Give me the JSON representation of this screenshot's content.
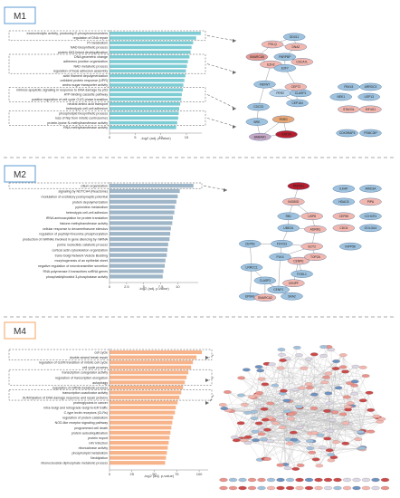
{
  "panels": [
    {
      "label": "M1",
      "accent": "#5b9bd5",
      "bar_color": "#7dccd4",
      "chart_data": {
        "type": "bar",
        "orientation": "horizontal",
        "xlabel": "-log2 (adj. p-value)",
        "xlim": [
          0,
          18
        ],
        "xticks": [
          0,
          5,
          10,
          15
        ],
        "categories": [
          "exonucleolytic activity, producing 5'-phosphomonoesters",
          "regulation of DNA repair",
          "PI metabolism",
          "NAD biosynthetic process",
          "protein K63-linked deubiquitination",
          "DNA geometric change",
          "adherens junction organization",
          "NAD metabolic process",
          "regulation of focal adhesion assembly",
          "actin filament depolymerization",
          "unfolded protein response (UPR)",
          "amino sugar transporter activity",
          "intrinsic apoptotic signaling in response to DNA damage by p53",
          "ATP-binding cassette pathway",
          "positive regulation of cell cycle G1/S phase transition",
          "neutral amino acid transport",
          "heterotypic cell-cell adhesion",
          "phospholipid biosynthetic process",
          "loss of Nlp from mitotic centrosomes",
          "protein-lysine N-methyltransferase activity",
          "RNA methyltransferase activity"
        ],
        "values": [
          17.8,
          16.9,
          16.3,
          16.0,
          15.8,
          15.6,
          15.3,
          15.1,
          14.9,
          14.8,
          14.6,
          14.4,
          14.3,
          14.1,
          14.0,
          13.8,
          13.6,
          13.5,
          13.4,
          13.2,
          13.0
        ]
      },
      "network": {
        "nodes": [
          {
            "label": "DDX11",
            "fill": "#9fc3de"
          },
          {
            "label": "POLQ",
            "fill": "#f2b8b0"
          },
          {
            "label": "DNA2",
            "fill": "#f2b8b0"
          },
          {
            "label": "SMARCA5",
            "fill": "#e79b92"
          },
          {
            "label": "PARPBP",
            "fill": "#9fc3de"
          },
          {
            "label": "CDCA7L",
            "fill": "#f2b8b0"
          },
          {
            "label": "EZH2",
            "fill": "#f2b8b0"
          },
          {
            "label": "E2F7",
            "fill": "#9fc3de"
          },
          {
            "label": "FBXW7",
            "fill": "#9fc3de"
          },
          {
            "label": "PER2",
            "fill": "#b8d3e8"
          },
          {
            "label": "CLASP1",
            "fill": "#9fc3de"
          },
          {
            "label": "CEP72",
            "fill": "#f2b8b0"
          },
          {
            "label": "CDC23",
            "fill": "#9fc3de"
          },
          {
            "label": "CEP164",
            "fill": "#9fc3de"
          },
          {
            "label": "BRE",
            "fill": "#9fc3de"
          },
          {
            "label": "PARG",
            "fill": "#e8a878"
          },
          {
            "label": "BABAM1",
            "fill": "#c6a9c6"
          },
          {
            "label": "KAT2A",
            "fill": "#b51e2e"
          },
          {
            "label": "FBXL5",
            "fill": "#9fc3de"
          },
          {
            "label": "ARRDC3",
            "fill": "#9fc3de"
          },
          {
            "label": "NEK1",
            "fill": "#9fc3de"
          },
          {
            "label": "USP13",
            "fill": "#9fc3de"
          },
          {
            "label": "STAG3L",
            "fill": "#f2b8b0"
          },
          {
            "label": "EIF4G1",
            "fill": "#f2b8b0"
          },
          {
            "label": "CDK5RAP3",
            "fill": "#9fc3de"
          },
          {
            "label": "PSMC3IP",
            "fill": "#9fc3de"
          }
        ]
      }
    },
    {
      "label": "M2",
      "accent": "#5b9bd5",
      "bar_color": "#9eb6c8",
      "chart_data": {
        "type": "bar",
        "orientation": "horizontal",
        "xlabel": "-log2 (adj. p-value)",
        "xlim": [
          0,
          13
        ],
        "xticks": [
          0,
          2.5,
          5,
          7.5,
          10
        ],
        "categories": [
          "cilium organization",
          "signaling by NOTCH4 (Reactome)",
          "modulation of excitatory postsynaptic potential",
          "protein depolymerization",
          "pyrimidine metabolism",
          "heterotypic cell-cell adhesion",
          "tRNA aminoacylation for protein translation",
          "histone methyltransferase activity",
          "cellular response to dexamethasone stimulus",
          "regulation of peptidyl-threonine phosphorylation",
          "production of miRNAs involved in gene silencing by miRNA",
          "purine nucleotide catabolic process",
          "cortical actin cytoskeleton organization",
          "trans-Golgi Network Vesicle Budding",
          "morphogenesis of an epithelial sheet",
          "negative regulation of neurotransmitter secretion",
          "RNA polymerase II transcribes snRNA genes",
          "phosphatidylinositol 3-phosphatase activity"
        ],
        "values": [
          12.3,
          10.3,
          10.0,
          9.8,
          9.6,
          9.5,
          9.3,
          9.2,
          9.0,
          8.9,
          8.8,
          8.6,
          8.5,
          8.4,
          8.2,
          8.1,
          7.9,
          7.8
        ]
      },
      "network": {
        "nodes": [
          {
            "label": "PAFAH1",
            "fill": "#b51e2e"
          },
          {
            "label": "INO80D",
            "fill": "#f2b8b0"
          },
          {
            "label": "RB1",
            "fill": "#9fc3de"
          },
          {
            "label": "USP8",
            "fill": "#f2b8b0"
          },
          {
            "label": "ADRM1",
            "fill": "#f2b8b0"
          },
          {
            "label": "UBE2A",
            "fill": "#9fc3de"
          },
          {
            "label": "CEP63",
            "fill": "#9fc3de"
          },
          {
            "label": "FOXO3",
            "fill": "#9fc3de"
          },
          {
            "label": "ECT2",
            "fill": "#f2b8b0"
          },
          {
            "label": "PLK4",
            "fill": "#9fc3de"
          },
          {
            "label": "CENPE",
            "fill": "#f2b8b0"
          },
          {
            "label": "TOP2A",
            "fill": "#f2b8b0"
          },
          {
            "label": "FGDL1",
            "fill": "#9fc3de"
          },
          {
            "label": "LRRCC1",
            "fill": "#9fc3de"
          },
          {
            "label": "CENPF",
            "fill": "#f2b8b0"
          },
          {
            "label": "CLASP2",
            "fill": "#9fc3de"
          },
          {
            "label": "CENPJ",
            "fill": "#9fc3de"
          },
          {
            "label": "EPB41",
            "fill": "#9fc3de"
          },
          {
            "label": "SKA2",
            "fill": "#9fc3de"
          },
          {
            "label": "SMARCA2",
            "fill": "#f2b8b0"
          },
          {
            "label": "ILKAP",
            "fill": "#9fc3de"
          },
          {
            "label": "ARID3A",
            "fill": "#9fc3de"
          },
          {
            "label": "HDAC6",
            "fill": "#9fc3de"
          },
          {
            "label": "PIPA",
            "fill": "#f2b8b0"
          },
          {
            "label": "CEP55",
            "fill": "#f2b8b0"
          },
          {
            "label": "CCHCR1",
            "fill": "#9fc3de"
          },
          {
            "label": "CDC6",
            "fill": "#f2b8b0"
          },
          {
            "label": "GOLGA4",
            "fill": "#9fc3de"
          },
          {
            "label": "INPP5K",
            "fill": "#9fc3de"
          }
        ]
      }
    },
    {
      "label": "M4",
      "accent": "#f4a460",
      "bar_color": "#f7b48a",
      "chart_data": {
        "type": "bar",
        "orientation": "horizontal",
        "xlabel": "-log2 (adj. p-value)",
        "xlim": [
          0,
          110
        ],
        "xticks": [
          0,
          25,
          50,
          75,
          100
        ],
        "categories": [
          "cell cycle",
          "double-strand break repair",
          "regulation of G2/M transition of mitotic cell cycle",
          "cell cycle process",
          "transcription coregulator activity",
          "regulation of transcription elongation",
          "autophagy",
          "regulation of mRNA metabolic process",
          "transcription coactivator activity",
          "SUMOylation of DNA damage response and repair proteins",
          "proteoglycans in cancer",
          "intra-Golgi and retrograde Golgi-to-ER traffic",
          "C-type lectin receptors (CLRs)",
          "regulation of protein catabolism",
          "NOD-like receptor signaling pathway",
          "programmed cell death",
          "protein autoubiquitination",
          "protein import",
          "HIV Infection",
          "ribonuclease activity",
          "phospholipid metabolism",
          "Neddylation",
          "ribonucleoside diphosphate metabolic process"
        ],
        "values": [
          103,
          97,
          93,
          91,
          88,
          86,
          84,
          82,
          80,
          78,
          76,
          74,
          73,
          71,
          70,
          69,
          68,
          67,
          66,
          65,
          64,
          63,
          62
        ]
      }
    }
  ]
}
